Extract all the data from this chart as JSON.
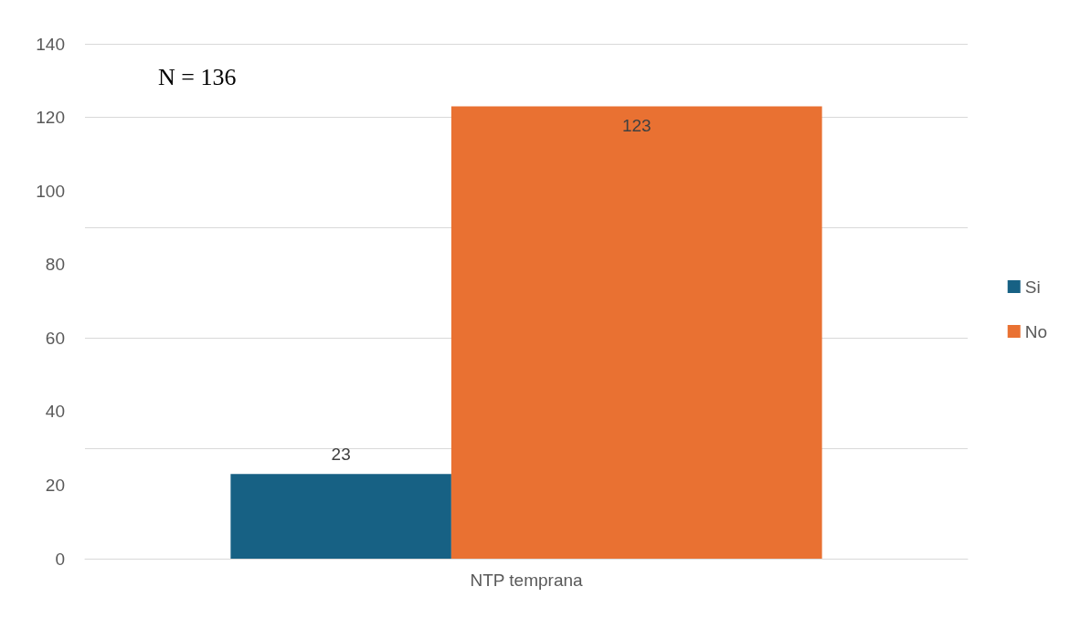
{
  "chart_data": {
    "type": "bar",
    "categories": [
      "NTP temprana"
    ],
    "series": [
      {
        "name": "Si",
        "color": "#176184",
        "values": [
          23
        ]
      },
      {
        "name": "No",
        "color": "#e97132",
        "values": [
          123
        ]
      }
    ],
    "ylim": [
      0,
      140
    ],
    "yticks": [
      0,
      20,
      40,
      60,
      80,
      100,
      120,
      140
    ],
    "grid": "y",
    "legend": "right",
    "data_labels": true,
    "annotations": [
      "N = 136"
    ]
  }
}
